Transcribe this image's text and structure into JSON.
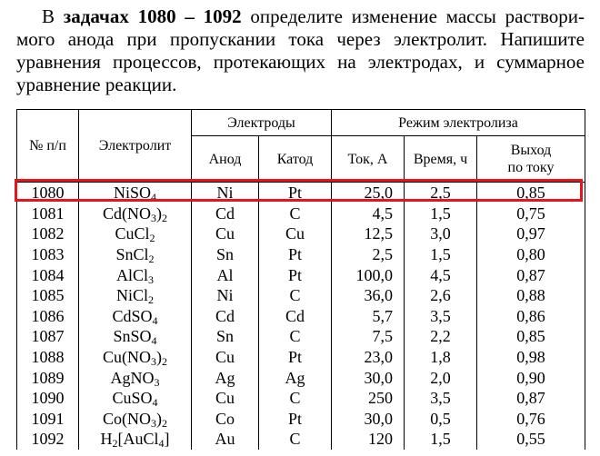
{
  "intro": {
    "prefix": "В ",
    "bold": "задачах 1080 – 1092",
    "rest_line1": " определите изменение массы раствори-",
    "line2": "мого анода при пропускании тока через электролит. Напишите",
    "line3": "уравнения процессов, протекающих на электродах, и суммарное",
    "line4": "уравнение реакции."
  },
  "headers": {
    "num": "№ п/п",
    "electrolyte": "Электролит",
    "electrodes": "Электроды",
    "anode": "Анод",
    "cathode": "Катод",
    "mode": "Режим электролиза",
    "current": "Ток, А",
    "time": "Время, ч",
    "yield_line1": "Выход",
    "yield_line2": "по току"
  },
  "rows": [
    {
      "num": "1080",
      "formula": [
        [
          "NiSO",
          ""
        ],
        [
          "4",
          "sub"
        ]
      ],
      "anode": "Ni",
      "cathode": "Pt",
      "current": "25,0",
      "time": "2,5",
      "yield": "0,85",
      "highlighted": true
    },
    {
      "num": "1081",
      "formula": [
        [
          "Cd(NO",
          ""
        ],
        [
          "3",
          "sub"
        ],
        [
          ")",
          ""
        ],
        [
          "2",
          "sub"
        ]
      ],
      "anode": "Cd",
      "cathode": "C",
      "current": "4,5",
      "time": "1,5",
      "yield": "0,75"
    },
    {
      "num": "1082",
      "formula": [
        [
          "CuCl",
          ""
        ],
        [
          "2",
          "sub"
        ]
      ],
      "anode": "Cu",
      "cathode": "Cu",
      "current": "12,5",
      "time": "3,0",
      "yield": "0,97"
    },
    {
      "num": "1083",
      "formula": [
        [
          "SnCl",
          ""
        ],
        [
          "2",
          "sub"
        ]
      ],
      "anode": "Sn",
      "cathode": "Pt",
      "current": "2,5",
      "time": "1,5",
      "yield": "0,80"
    },
    {
      "num": "1084",
      "formula": [
        [
          "AlCl",
          ""
        ],
        [
          "3",
          "sub"
        ]
      ],
      "anode": "Al",
      "cathode": "Pt",
      "current": "100,0",
      "time": "4,5",
      "yield": "0,87"
    },
    {
      "num": "1085",
      "formula": [
        [
          "NiCl",
          ""
        ],
        [
          "2",
          "sub"
        ]
      ],
      "anode": "Ni",
      "cathode": "C",
      "current": "36,0",
      "time": "2,6",
      "yield": "0,88"
    },
    {
      "num": "1086",
      "formula": [
        [
          "CdSO",
          ""
        ],
        [
          "4",
          "sub"
        ]
      ],
      "anode": "Cd",
      "cathode": "Cd",
      "current": "5,7",
      "time": "3,5",
      "yield": "0,86"
    },
    {
      "num": "1087",
      "formula": [
        [
          "SnSO",
          ""
        ],
        [
          "4",
          "sub"
        ]
      ],
      "anode": "Sn",
      "cathode": "C",
      "current": "7,5",
      "time": "2,2",
      "yield": "0,85"
    },
    {
      "num": "1088",
      "formula": [
        [
          "Cu(NO",
          ""
        ],
        [
          "3",
          "sub"
        ],
        [
          ")",
          ""
        ],
        [
          "2",
          "sub"
        ]
      ],
      "anode": "Cu",
      "cathode": "Pt",
      "current": "23,0",
      "time": "1,8",
      "yield": "0,98"
    },
    {
      "num": "1089",
      "formula": [
        [
          "AgNO",
          ""
        ],
        [
          "3",
          "sub"
        ]
      ],
      "anode": "Ag",
      "cathode": "Ag",
      "current": "30,0",
      "time": "2,0",
      "yield": "0,90"
    },
    {
      "num": "1090",
      "formula": [
        [
          "CuSO",
          ""
        ],
        [
          "4",
          "sub"
        ]
      ],
      "anode": "Cu",
      "cathode": "C",
      "current": "250",
      "time": "3,5",
      "yield": "0,87"
    },
    {
      "num": "1091",
      "formula": [
        [
          "Co(NO",
          ""
        ],
        [
          "3",
          "sub"
        ],
        [
          ")",
          ""
        ],
        [
          "2",
          "sub"
        ]
      ],
      "anode": "Co",
      "cathode": "Pt",
      "current": "30,0",
      "time": "0,5",
      "yield": "0,76"
    },
    {
      "num": "1092",
      "formula": [
        [
          "H",
          ""
        ],
        [
          "2",
          "sub"
        ],
        [
          "[AuCl",
          ""
        ],
        [
          "4",
          "sub"
        ],
        [
          "]",
          ""
        ]
      ],
      "anode": "Au",
      "cathode": "C",
      "current": "120",
      "time": "1,5",
      "yield": "0,55"
    }
  ],
  "highlight_color": "#e8141b"
}
